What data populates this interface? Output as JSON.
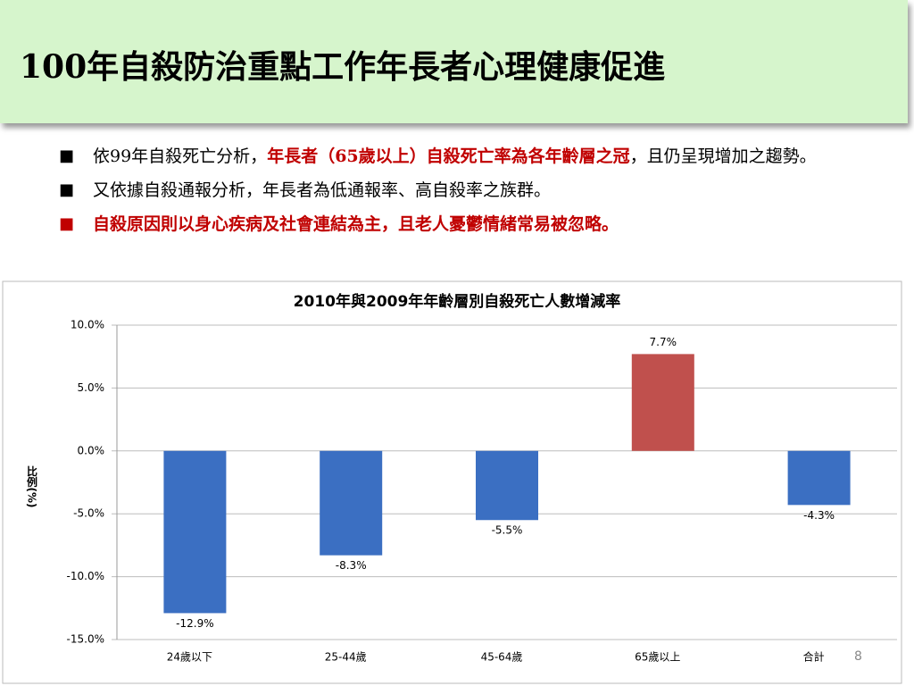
{
  "header": {
    "title": "100年自殺防治重點工作年長者心理健康促進"
  },
  "bullets": [
    {
      "segments": [
        {
          "text": "依99年自殺死亡分析，",
          "color": "#000000"
        },
        {
          "text": "年長者（65歲以上）自殺死亡率為各年齡層之冠",
          "color": "#c00000"
        },
        {
          "text": "，且仍呈現增加之趨勢。",
          "color": "#000000"
        }
      ]
    },
    {
      "segments": [
        {
          "text": "又依據自殺通報分析，年長者為低通報率、高自殺率之族群。",
          "color": "#000000"
        }
      ]
    },
    {
      "segments": [
        {
          "text": "自殺原因則以身心疾病及社會連結為主，且老人憂鬱情緒常易被忽略。",
          "color": "#c00000"
        }
      ]
    }
  ],
  "chart_data": {
    "type": "bar",
    "title": "2010年與2009年年齡層別自殺死亡人數增減率",
    "y_label": "比例(%)",
    "categories": [
      "24歲以下",
      "25-44歲",
      "45-64歲",
      "65歲以上",
      "合計"
    ],
    "values": [
      -12.9,
      -8.3,
      -5.5,
      7.7,
      -4.3
    ],
    "value_labels": [
      "-12.9%",
      "-8.3%",
      "-5.5%",
      "7.7%",
      "-4.3%"
    ],
    "colors": [
      "#3b6fc2",
      "#3b6fc2",
      "#3b6fc2",
      "#c0504d",
      "#3b6fc2"
    ],
    "ylim": [
      -15,
      10
    ],
    "yticks": [
      {
        "value": -15,
        "label": "-15.0%"
      },
      {
        "value": -10,
        "label": "-10.0%"
      },
      {
        "value": -5,
        "label": "-5.0%"
      },
      {
        "value": 0,
        "label": "0.0%"
      },
      {
        "value": 5,
        "label": "5.0%"
      },
      {
        "value": 10,
        "label": "10.0%"
      }
    ],
    "grid": true
  },
  "page_number": "8"
}
